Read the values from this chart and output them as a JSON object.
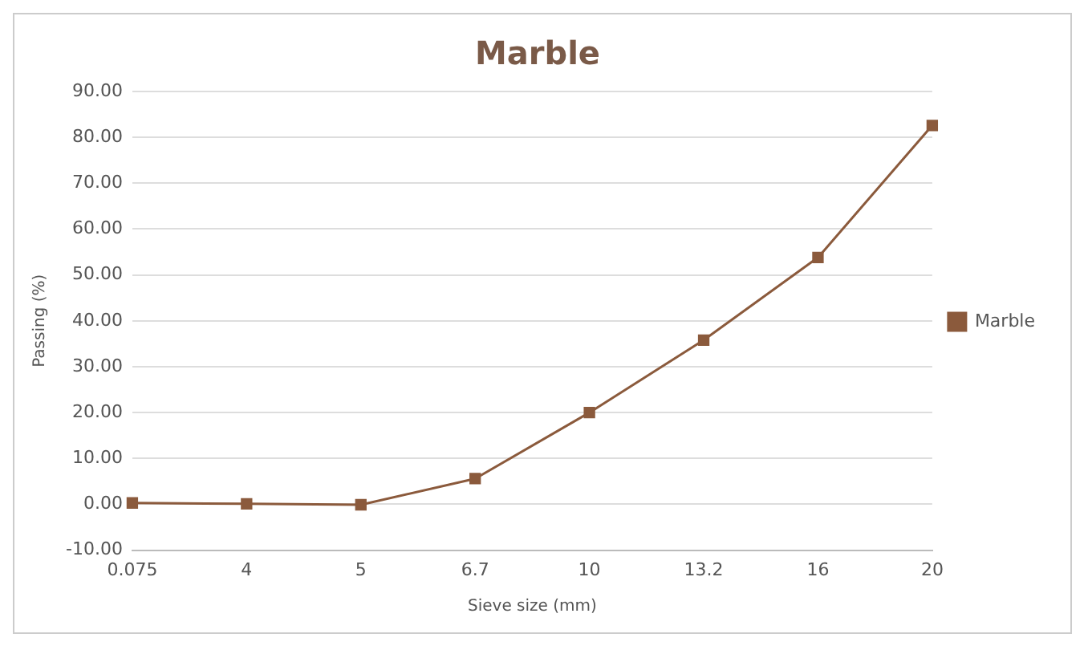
{
  "chart_data": {
    "type": "line",
    "title": "Marble",
    "xlabel": "Sieve size (mm)",
    "ylabel": "Passing (%)",
    "categories": [
      "0.075",
      "4",
      "5",
      "6.7",
      "10",
      "13.2",
      "16",
      "20"
    ],
    "series": [
      {
        "name": "Marble",
        "color": "#8b5a3c",
        "values": [
          0.3,
          0.1,
          -0.1,
          5.6,
          20,
          35.8,
          53.8,
          82.6
        ]
      }
    ],
    "ylim": [
      -10,
      90
    ],
    "yticks": [
      {
        "value": -10,
        "label": "-10.00"
      },
      {
        "value": 0,
        "label": "0.00"
      },
      {
        "value": 10,
        "label": "10.00"
      },
      {
        "value": 20,
        "label": "20.00"
      },
      {
        "value": 30,
        "label": "30.00"
      },
      {
        "value": 40,
        "label": "40.00"
      },
      {
        "value": 50,
        "label": "50.00"
      },
      {
        "value": 60,
        "label": "60.00"
      },
      {
        "value": 70,
        "label": "70.00"
      },
      {
        "value": 80,
        "label": "80.00"
      },
      {
        "value": 90,
        "label": "90.00"
      }
    ],
    "grid": "y",
    "legend": "right",
    "marker": "square",
    "line_style": "solid"
  }
}
